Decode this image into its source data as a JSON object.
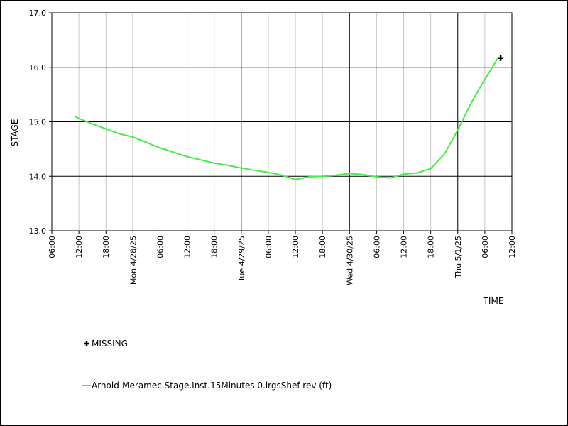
{
  "chart_data": {
    "type": "line",
    "xlabel": "TIME",
    "ylabel": "STAGE",
    "ylim": [
      13.0,
      17.0
    ],
    "yticks": [
      "13.0",
      "14.0",
      "15.0",
      "16.0",
      "17.0"
    ],
    "xlim": [
      "4/27/25 06:00",
      "5/1/25 12:00"
    ],
    "xticks": [
      "06:00",
      "12:00",
      "18:00",
      "Mon 4/28/25",
      "06:00",
      "12:00",
      "18:00",
      "Tue 4/29/25",
      "06:00",
      "12:00",
      "18:00",
      "Wed 4/30/25",
      "06:00",
      "12:00",
      "18:00",
      "Thu 5/1/25",
      "06:00",
      "12:00"
    ],
    "grid": true,
    "series": [
      {
        "name": "Arnold-Meramec.Stage.Inst.15Minutes.0.lrgsShef-rev (ft)",
        "color": "#44ee44",
        "x": [
          "4/27/25 11:00",
          "4/27/25 12:00",
          "4/27/25 15:00",
          "4/27/25 18:00",
          "4/27/25 21:00",
          "4/28/25 00:00",
          "4/28/25 03:00",
          "4/28/25 06:00",
          "4/28/25 09:00",
          "4/28/25 12:00",
          "4/28/25 15:00",
          "4/28/25 18:00",
          "4/28/25 21:00",
          "4/29/25 00:00",
          "4/29/25 03:00",
          "4/29/25 06:00",
          "4/29/25 09:00",
          "4/29/25 12:00",
          "4/29/25 15:00",
          "4/29/25 18:00",
          "4/29/25 21:00",
          "4/30/25 00:00",
          "4/30/25 03:00",
          "4/30/25 06:00",
          "4/30/25 09:00",
          "4/30/25 12:00",
          "4/30/25 15:00",
          "4/30/25 18:00",
          "4/30/25 21:00",
          "5/1/25 00:00",
          "5/1/25 03:00",
          "5/1/25 06:00",
          "5/1/25 09:00"
        ],
        "values": [
          15.11,
          15.06,
          14.96,
          14.87,
          14.78,
          14.72,
          14.62,
          14.52,
          14.44,
          14.36,
          14.3,
          14.24,
          14.2,
          14.15,
          14.11,
          14.07,
          14.02,
          13.94,
          13.99,
          14.0,
          14.02,
          14.05,
          14.03,
          13.99,
          13.97,
          14.04,
          14.06,
          14.14,
          14.4,
          14.85,
          15.35,
          15.78,
          16.18
        ]
      }
    ],
    "missing_marker": {
      "label": "MISSING",
      "x": "5/1/25 09:30",
      "y": 16.17
    }
  }
}
